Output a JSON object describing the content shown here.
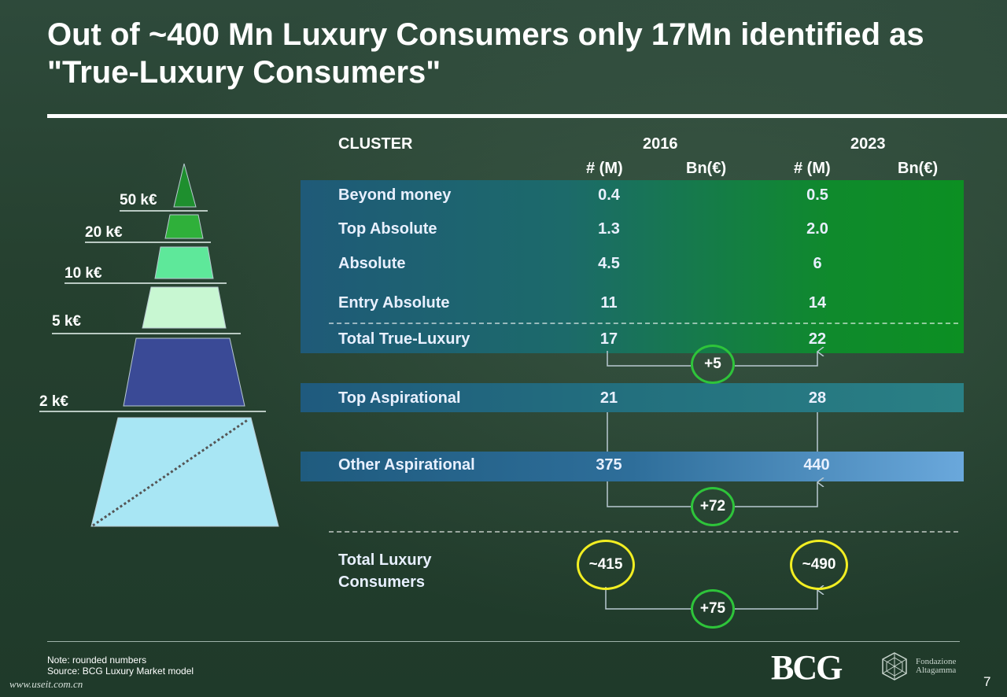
{
  "title": "Out of ~400 Mn Luxury Consumers only 17Mn identified as \"True-Luxury Consumers\"",
  "table": {
    "cluster_header": "CLUSTER",
    "year_a": "2016",
    "year_b": "2023",
    "sub_count": "# (M)",
    "sub_value": "Bn(€)",
    "rows": [
      {
        "label": "Beyond money",
        "v2016": "0.4",
        "v2023": "0.5"
      },
      {
        "label": "Top Absolute",
        "v2016": "1.3",
        "v2023": "2.0"
      },
      {
        "label": "Absolute",
        "v2016": "4.5",
        "v2023": "6"
      },
      {
        "label": "Entry Absolute",
        "v2016": "11",
        "v2023": "14"
      },
      {
        "label": "Total True-Luxury",
        "v2016": "17",
        "v2023": "22"
      },
      {
        "label": "Top Aspirational",
        "v2016": "21",
        "v2023": "28"
      },
      {
        "label": "Other Aspirational",
        "v2016": "375",
        "v2023": "440"
      }
    ],
    "total": {
      "label_line1": "Total Luxury",
      "label_line2": "Consumers",
      "v2016": "~415",
      "v2023": "~490"
    },
    "deltas": {
      "true_luxury": "+5",
      "aspirational": "+72",
      "total": "+75"
    }
  },
  "pyramid": {
    "labels": [
      "50 k€",
      "20 k€",
      "10 k€",
      "5 k€",
      "2 k€"
    ],
    "colors": [
      "#1e8f2e",
      "#2fb03a",
      "#5ee89a",
      "#c8f7d2",
      "#3a4a96",
      "#a8e6f4"
    ]
  },
  "footer": {
    "note": "Note: rounded numbers",
    "source": "Source: BCG Luxury Market model",
    "logo": "BCG",
    "partner_line1": "Fondazione",
    "partner_line2": "Altagamma",
    "page": "7",
    "watermark": "www.useit.com.cn"
  },
  "colors": {
    "highlight_green": "#2ec43a",
    "highlight_yellow": "#f2ee22"
  }
}
